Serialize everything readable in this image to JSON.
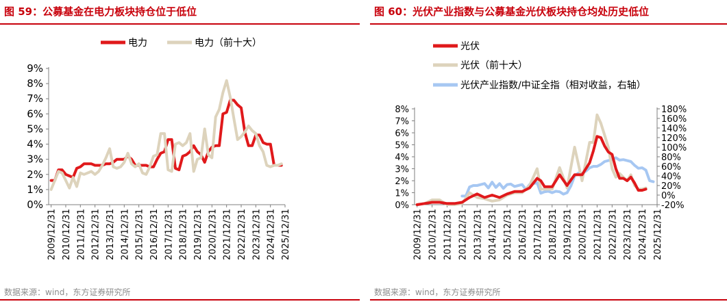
{
  "left": {
    "title": "图 59：公募基金在电力板块持仓位于低位",
    "source": "数据来源：wind，东方证券研究所",
    "chart_data": {
      "type": "line",
      "x_ticks": [
        "2009/12/31",
        "2010/12/31",
        "2011/12/31",
        "2012/12/31",
        "2013/12/31",
        "2014/12/31",
        "2015/12/31",
        "2016/12/31",
        "2017/12/31",
        "2018/12/31",
        "2019/12/31",
        "2020/12/31",
        "2021/12/31",
        "2022/12/31",
        "2023/12/31",
        "2024/12/31",
        "2025/12/31"
      ],
      "y_ticks": [
        "0%",
        "1%",
        "2%",
        "3%",
        "4%",
        "5%",
        "6%",
        "7%",
        "8%",
        "9%"
      ],
      "ylim": [
        0,
        9
      ],
      "legend_position": "top",
      "series": [
        {
          "name": "电力",
          "color": "#e0191b",
          "x": [
            2009.97,
            2010.22,
            2010.47,
            2010.72,
            2010.97,
            2011.22,
            2011.47,
            2011.72,
            2011.97,
            2012.22,
            2012.47,
            2012.72,
            2012.97,
            2013.22,
            2013.47,
            2013.72,
            2013.97,
            2014.22,
            2014.47,
            2014.72,
            2014.97,
            2015.22,
            2015.47,
            2015.72,
            2015.97,
            2016.22,
            2016.47,
            2016.72,
            2016.97,
            2017.22,
            2017.47,
            2017.72,
            2017.97,
            2018.22,
            2018.47,
            2018.72,
            2018.97,
            2019.22,
            2019.47,
            2019.72,
            2019.97,
            2020.22,
            2020.47,
            2020.72,
            2020.97,
            2021.22,
            2021.47,
            2021.72,
            2021.97,
            2022.22,
            2022.47,
            2022.72,
            2022.97,
            2023.22,
            2023.47,
            2023.72,
            2023.97,
            2024.22,
            2024.47,
            2024.72,
            2024.97,
            2025.22,
            2025.47,
            2025.72
          ],
          "y": [
            1.6,
            1.6,
            2.3,
            2.3,
            2.0,
            1.9,
            1.8,
            2.4,
            2.5,
            2.7,
            2.7,
            2.7,
            2.6,
            2.6,
            2.6,
            2.7,
            2.7,
            2.8,
            3.0,
            3.0,
            3.0,
            3.2,
            3.0,
            2.6,
            2.6,
            2.6,
            2.6,
            2.5,
            2.5,
            3.0,
            3.4,
            3.5,
            4.3,
            4.3,
            2.4,
            2.3,
            3.2,
            3.3,
            3.5,
            3.9,
            3.5,
            3.3,
            2.8,
            3.5,
            3.8,
            3.9,
            3.9,
            6.0,
            6.1,
            6.9,
            6.9,
            6.6,
            6.4,
            4.8,
            3.9,
            3.9,
            4.6,
            4.6,
            4.1,
            4.0,
            4.0,
            2.6,
            2.6,
            2.6
          ]
        },
        {
          "name": "电力（前十大）",
          "color": "#ddd3bc",
          "x": [
            2009.97,
            2010.22,
            2010.47,
            2010.72,
            2010.97,
            2011.22,
            2011.47,
            2011.72,
            2011.97,
            2012.22,
            2012.47,
            2012.72,
            2012.97,
            2013.22,
            2013.47,
            2013.72,
            2013.97,
            2014.22,
            2014.47,
            2014.72,
            2014.97,
            2015.22,
            2015.47,
            2015.72,
            2015.97,
            2016.22,
            2016.47,
            2016.72,
            2016.97,
            2017.22,
            2017.47,
            2017.72,
            2017.97,
            2018.22,
            2018.47,
            2018.72,
            2018.97,
            2019.22,
            2019.47,
            2019.72,
            2019.97,
            2020.22,
            2020.47,
            2020.72,
            2020.97,
            2021.22,
            2021.47,
            2021.72,
            2021.97,
            2022.22,
            2022.47,
            2022.72,
            2022.97,
            2023.22,
            2023.47,
            2023.72,
            2023.97,
            2024.22,
            2024.47,
            2024.72,
            2024.97,
            2025.22,
            2025.47,
            2025.72
          ],
          "y": [
            1.0,
            1.6,
            2.2,
            2.1,
            1.6,
            1.1,
            1.8,
            1.2,
            2.1,
            2.0,
            2.1,
            2.2,
            2.0,
            2.2,
            2.6,
            3.1,
            3.7,
            2.5,
            2.4,
            2.5,
            2.8,
            3.4,
            2.7,
            2.5,
            2.7,
            2.1,
            2.0,
            2.5,
            3.2,
            3.3,
            4.7,
            4.7,
            2.3,
            2.2,
            4.0,
            4.1,
            3.9,
            4.1,
            4.7,
            2.2,
            3.0,
            3.1,
            5.0,
            3.3,
            3.1,
            5.8,
            6.3,
            7.4,
            8.2,
            7.1,
            5.7,
            4.3,
            4.5,
            4.8,
            5.2,
            4.9,
            4.7,
            3.9,
            3.5,
            2.6,
            2.5,
            2.6,
            2.6,
            2.7
          ]
        }
      ]
    }
  },
  "right": {
    "title": "图 60：光伏产业指数与公募基金光伏板块持仓均处历史低位",
    "source": "数据来源：wind，东方证券研究所",
    "chart_data": {
      "type": "line",
      "x_ticks": [
        "2009/12/31",
        "2010/12/31",
        "2011/12/31",
        "2012/12/31",
        "2013/12/31",
        "2014/12/31",
        "2015/12/31",
        "2016/12/31",
        "2017/12/31",
        "2018/12/31",
        "2019/12/31",
        "2020/12/31",
        "2021/12/31",
        "2022/12/31",
        "2023/12/31",
        "2024/12/31",
        "2025/12/31"
      ],
      "y_ticks": [
        "0%",
        "1%",
        "2%",
        "3%",
        "4%",
        "5%",
        "6%",
        "7%",
        "8%"
      ],
      "ylim": [
        0,
        8
      ],
      "y2_ticks": [
        "-20%",
        "0%",
        "20%",
        "40%",
        "60%",
        "80%",
        "100%",
        "120%",
        "140%",
        "160%",
        "180%"
      ],
      "y2lim": [
        -20,
        180
      ],
      "legend_position": "top-left",
      "series": [
        {
          "name": "光伏",
          "color": "#e0191b",
          "axis": "left",
          "x": [
            2009.97,
            2010.47,
            2010.97,
            2011.47,
            2011.97,
            2012.47,
            2012.97,
            2013.47,
            2013.97,
            2014.47,
            2014.97,
            2015.47,
            2015.97,
            2016.47,
            2016.97,
            2017.47,
            2017.97,
            2018.22,
            2018.47,
            2018.97,
            2019.47,
            2019.97,
            2020.47,
            2020.97,
            2021.22,
            2021.47,
            2021.72,
            2021.97,
            2022.22,
            2022.47,
            2022.72,
            2022.97,
            2023.22,
            2023.47,
            2023.72,
            2023.97,
            2024.22,
            2024.47,
            2024.72,
            2024.97,
            2025.22
          ],
          "y": [
            0.0,
            0.1,
            0.2,
            0.2,
            0.1,
            0.1,
            0.2,
            0.6,
            0.9,
            0.6,
            0.8,
            0.6,
            0.9,
            1.1,
            1.1,
            1.4,
            2.2,
            2.0,
            1.5,
            1.5,
            2.5,
            1.6,
            2.5,
            2.5,
            3.0,
            3.5,
            4.5,
            5.7,
            5.6,
            4.9,
            4.4,
            4.2,
            3.0,
            2.2,
            2.2,
            2.0,
            2.3,
            1.8,
            1.2,
            1.2,
            1.3
          ]
        },
        {
          "name": "光伏（前十大）",
          "color": "#ddd3bc",
          "axis": "left",
          "x": [
            2009.97,
            2010.47,
            2010.97,
            2011.47,
            2011.97,
            2012.47,
            2012.97,
            2013.47,
            2013.97,
            2014.47,
            2014.97,
            2015.47,
            2015.97,
            2016.47,
            2016.97,
            2017.47,
            2017.97,
            2018.22,
            2018.47,
            2018.97,
            2019.47,
            2019.97,
            2020.47,
            2020.97,
            2021.22,
            2021.47,
            2021.72,
            2021.97,
            2022.22,
            2022.47,
            2022.72,
            2022.97,
            2023.22,
            2023.47,
            2023.72,
            2023.97,
            2024.22,
            2024.47,
            2024.72,
            2024.97,
            2025.22
          ],
          "y": [
            0.0,
            0.1,
            0.4,
            0.4,
            0.0,
            0.0,
            0.1,
            1.0,
            0.6,
            0.5,
            0.3,
            0.4,
            0.8,
            1.0,
            1.0,
            1.6,
            3.0,
            1.3,
            1.3,
            1.3,
            3.1,
            1.4,
            4.8,
            2.0,
            3.6,
            5.2,
            5.2,
            7.5,
            6.8,
            5.8,
            4.8,
            3.0,
            2.3,
            2.6,
            2.3,
            2.0,
            2.5,
            1.6,
            1.3,
            1.3,
            1.4
          ]
        },
        {
          "name": "光伏产业指数/中证全指（相对收益，右轴）",
          "color": "#a6c7f2",
          "axis": "right",
          "x": [
            2012.97,
            2013.22,
            2013.47,
            2013.72,
            2013.97,
            2014.22,
            2014.47,
            2014.72,
            2014.97,
            2015.22,
            2015.47,
            2015.72,
            2015.97,
            2016.22,
            2016.47,
            2016.72,
            2016.97,
            2017.22,
            2017.47,
            2017.72,
            2017.97,
            2018.22,
            2018.47,
            2018.72,
            2018.97,
            2019.22,
            2019.47,
            2019.72,
            2019.97,
            2020.22,
            2020.47,
            2020.72,
            2020.97,
            2021.22,
            2021.47,
            2021.72,
            2021.97,
            2022.22,
            2022.47,
            2022.72,
            2022.97,
            2023.22,
            2023.47,
            2023.72,
            2023.97,
            2024.22,
            2024.47,
            2024.72,
            2024.97,
            2025.22,
            2025.47,
            2025.72
          ],
          "y": [
            -2,
            -2,
            17,
            20,
            20,
            22,
            24,
            15,
            27,
            16,
            24,
            14,
            22,
            23,
            18,
            20,
            22,
            12,
            22,
            24,
            26,
            4,
            7,
            8,
            5,
            8,
            7,
            2,
            5,
            19,
            40,
            46,
            45,
            50,
            57,
            60,
            60,
            64,
            70,
            72,
            74,
            78,
            73,
            74,
            72,
            70,
            62,
            56,
            57,
            52,
            30,
            28
          ]
        }
      ]
    }
  }
}
